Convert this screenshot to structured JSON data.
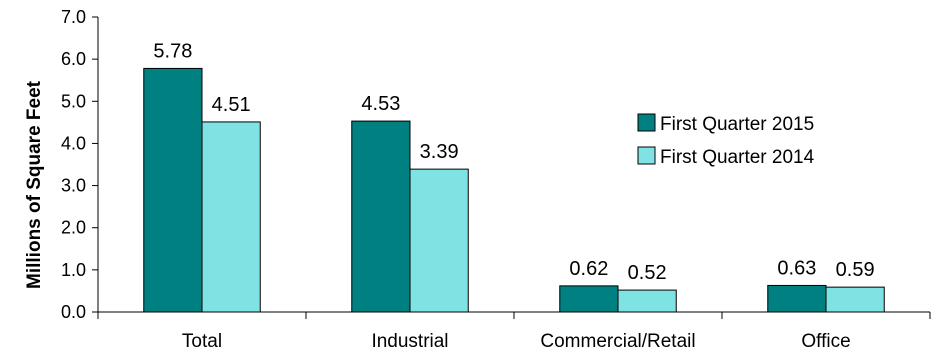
{
  "chart_data": {
    "type": "bar",
    "ylabel": "Millions of Square Feet",
    "xlabel": "",
    "title": "",
    "ylim": [
      0,
      7
    ],
    "y_ticks": [
      "0.0",
      "1.0",
      "2.0",
      "3.0",
      "4.0",
      "5.0",
      "6.0",
      "7.0"
    ],
    "categories": [
      "Total",
      "Industrial",
      "Commercial/Retail",
      "Office"
    ],
    "series": [
      {
        "name": "First Quarter 2015",
        "color": "#008080",
        "values": [
          5.78,
          4.53,
          0.62,
          0.63
        ],
        "labels": [
          "5.78",
          "4.53",
          "0.62",
          "0.63"
        ]
      },
      {
        "name": "First Quarter 2014",
        "color": "#80E3E3",
        "values": [
          4.51,
          3.39,
          0.52,
          0.59
        ],
        "labels": [
          "4.51",
          "3.39",
          "0.52",
          "0.59"
        ]
      }
    ],
    "grid": false,
    "legend_position": "right"
  }
}
